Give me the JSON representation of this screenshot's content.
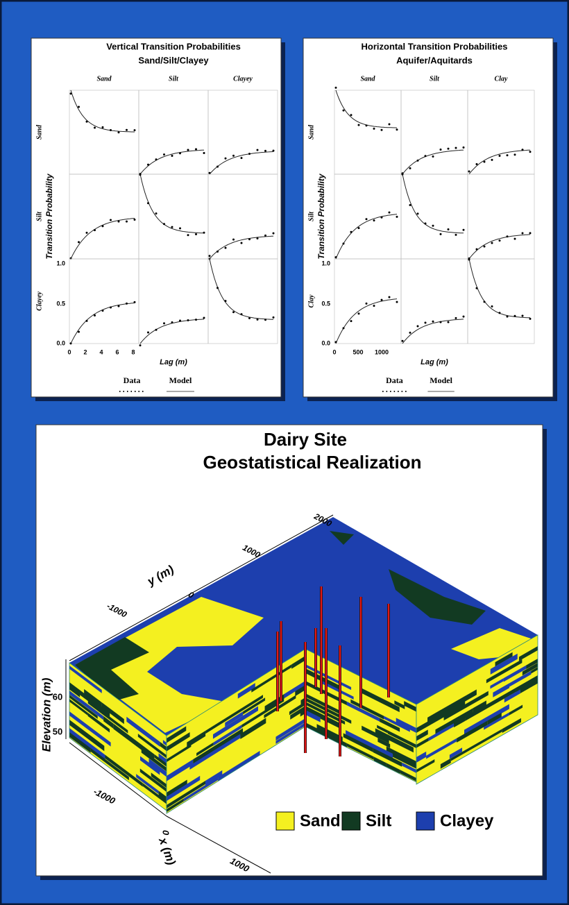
{
  "panels": [
    {
      "title_lines": [
        "Vertical Transition Probabilities",
        "Sand/Silt/Clayey"
      ],
      "columns": [
        "Sand",
        "Silt",
        "Clayey"
      ],
      "rows": [
        "Sand",
        "Silt",
        "Clayey"
      ],
      "y_label": "Transition Probability",
      "yticks": [
        "1.0",
        "0.5",
        "0.0"
      ],
      "xticks": [
        "0",
        "2",
        "4",
        "6",
        "8"
      ],
      "x_label": "Lag (m)",
      "legend": [
        "Data",
        "Model"
      ]
    },
    {
      "title_lines": [
        "Horizontal Transition Probabilities",
        "Aquifer/Aquitards"
      ],
      "columns": [
        "Sand",
        "Silt",
        "Clay"
      ],
      "rows": [
        "Sand",
        "Silt",
        "Clay"
      ],
      "y_label": "Transition Probability",
      "yticks": [
        "1.0",
        "0.5",
        "0.0"
      ],
      "xticks": [
        "0",
        "500",
        "1000"
      ],
      "x_label": "Lag (m)",
      "legend": [
        "Data",
        "Model"
      ]
    }
  ],
  "realization": {
    "title_lines": [
      "Dairy Site",
      "Geostatistical Realization"
    ],
    "y_axis": {
      "label": "y (m)",
      "ticks": [
        "-1000",
        "0",
        "1000",
        "2000"
      ]
    },
    "elevation_axis": {
      "label": "Elevation (m)",
      "ticks": [
        "60",
        "50"
      ]
    },
    "x_axis": {
      "label": "x (m)",
      "ticks": [
        "-1000",
        "0",
        "1000"
      ]
    },
    "legend": [
      {
        "label": "Sand",
        "color": "#f4f020"
      },
      {
        "label": "Silt",
        "color": "#123a22"
      },
      {
        "label": "Clayey",
        "color": "#1d3fae"
      }
    ]
  }
}
